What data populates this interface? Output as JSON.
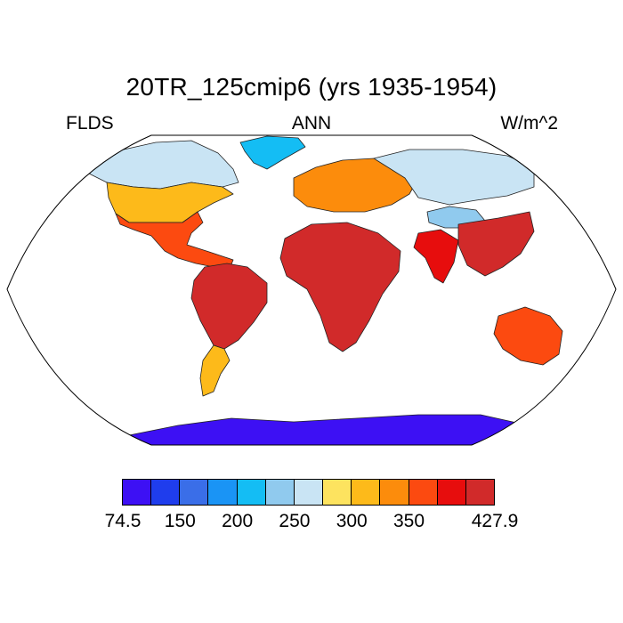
{
  "title": "20TR_125cmip6 (yrs 1935-1954)",
  "subtitles": {
    "left": "FLDS",
    "center": "ANN",
    "right": "W/m^2"
  },
  "colorbar": {
    "colors": [
      "#3d10f4",
      "#1f3ded",
      "#3a6ee8",
      "#1a94f5",
      "#14bdf4",
      "#90caee",
      "#c9e4f4",
      "#fde35f",
      "#fdba1a",
      "#fc8c0c",
      "#fc4a10",
      "#e70d0d",
      "#d12a2a"
    ],
    "labels": [
      {
        "text": "74.5",
        "boundary": 0
      },
      {
        "text": "150",
        "boundary": 2
      },
      {
        "text": "200",
        "boundary": 4
      },
      {
        "text": "250",
        "boundary": 6
      },
      {
        "text": "300",
        "boundary": 8
      },
      {
        "text": "350",
        "boundary": 10
      },
      {
        "text": "427.9",
        "boundary": 13
      }
    ]
  },
  "map_data": {
    "projection": "robinson",
    "variable": "FLDS",
    "units": "W/m^2",
    "season": "ANN",
    "min": 74.5,
    "max": 427.9,
    "regions": [
      {
        "name": "North America (north)",
        "level": 6
      },
      {
        "name": "North America (mid)",
        "level": 8
      },
      {
        "name": "North America (south)",
        "level": 10
      },
      {
        "name": "Greenland",
        "level": 4
      },
      {
        "name": "South America",
        "level": 12
      },
      {
        "name": "Patagonia",
        "level": 8
      },
      {
        "name": "Europe",
        "level": 9
      },
      {
        "name": "Siberia",
        "level": 6
      },
      {
        "name": "Tibetan Plateau",
        "level": 5
      },
      {
        "name": "Africa",
        "level": 12
      },
      {
        "name": "India",
        "level": 11
      },
      {
        "name": "Southeast Asia",
        "level": 12
      },
      {
        "name": "Australia",
        "level": 10
      },
      {
        "name": "Antarctica",
        "level": 0
      }
    ]
  }
}
